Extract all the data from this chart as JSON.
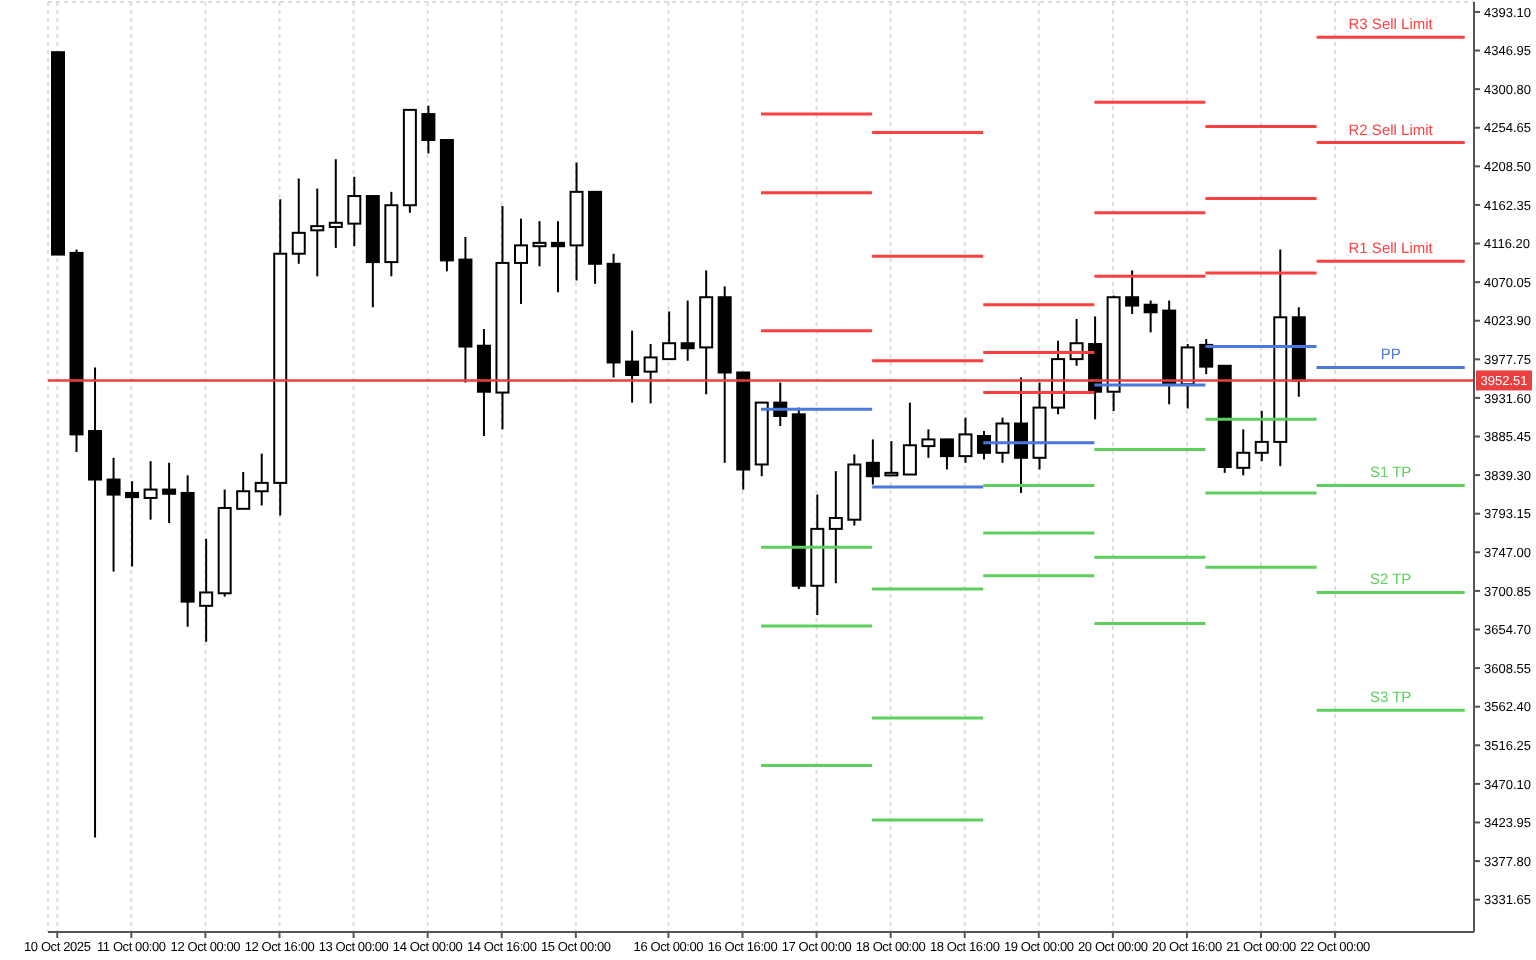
{
  "chart_data": {
    "type": "candlestick",
    "categories": [
      "10 Oct 2025",
      null,
      null,
      null,
      "11 Oct 00:00",
      null,
      null,
      null,
      "12 Oct 00:00",
      null,
      null,
      null,
      "12 Oct 16:00",
      null,
      null,
      null,
      "13 Oct 00:00",
      null,
      null,
      null,
      "14 Oct 00:00",
      null,
      null,
      null,
      "14 Oct 16:00",
      null,
      null,
      null,
      "15 Oct 00:00",
      null,
      null,
      null,
      null,
      "16 Oct 00:00",
      null,
      null,
      null,
      "16 Oct 16:00",
      null,
      null,
      null,
      "17 Oct 00:00",
      null,
      null,
      null,
      "18 Oct 00:00",
      null,
      null,
      null,
      "18 Oct 16:00",
      null,
      null,
      null,
      "19 Oct 00:00",
      null,
      null,
      null,
      "20 Oct 00:00",
      null,
      null,
      null,
      "20 Oct 16:00",
      null,
      null,
      null,
      "21 Oct 00:00",
      null,
      null,
      null,
      "22 Oct 00:00",
      null,
      null,
      null,
      null,
      null,
      null,
      null
    ],
    "ohlc": [
      [
        4345,
        4345,
        4103,
        4103
      ],
      [
        4105,
        4109,
        3867,
        3888
      ],
      [
        3892,
        3968,
        3406,
        3834
      ],
      [
        3834,
        3860,
        3724,
        3816
      ],
      [
        3818,
        3832,
        3730,
        3813
      ],
      [
        3812,
        3856,
        3786,
        3822
      ],
      [
        3822,
        3854,
        3782,
        3817
      ],
      [
        3818,
        3839,
        3658,
        3688
      ],
      [
        3683,
        3763,
        3640,
        3699
      ],
      [
        3698,
        3822,
        3694,
        3800
      ],
      [
        3799,
        3843,
        3799,
        3820
      ],
      [
        3820,
        3865,
        3803,
        3830
      ],
      [
        3830,
        4169,
        3791,
        4104
      ],
      [
        4104,
        4194,
        4092,
        4129
      ],
      [
        4132,
        4182,
        4077,
        4137
      ],
      [
        4136,
        4217,
        4111,
        4141
      ],
      [
        4140,
        4196,
        4113,
        4173
      ],
      [
        4173,
        4173,
        4040,
        4094
      ],
      [
        4094,
        4178,
        4077,
        4162
      ],
      [
        4162,
        4276,
        4153,
        4276
      ],
      [
        4271,
        4281,
        4224,
        4240
      ],
      [
        4240,
        4240,
        4083,
        4096
      ],
      [
        4097,
        4124,
        3950,
        3993
      ],
      [
        3994,
        4014,
        3886,
        3939
      ],
      [
        3938,
        4161,
        3894,
        4093
      ],
      [
        4093,
        4146,
        4044,
        4114
      ],
      [
        4113,
        4143,
        4089,
        4117
      ],
      [
        4117,
        4143,
        4058,
        4113
      ],
      [
        4114,
        4213,
        4072,
        4178
      ],
      [
        4178,
        4178,
        4068,
        4092
      ],
      [
        4092,
        4104,
        3956,
        3974
      ],
      [
        3975,
        4012,
        3926,
        3959
      ],
      [
        3963,
        3996,
        3925,
        3980
      ],
      [
        3978,
        4035,
        3978,
        3997
      ],
      [
        3997,
        4048,
        3976,
        3991
      ],
      [
        3992,
        4084,
        3936,
        4052
      ],
      [
        4052,
        4065,
        3854,
        3962
      ],
      [
        3962,
        3962,
        3822,
        3846
      ],
      [
        3852,
        3926,
        3838,
        3926
      ],
      [
        3926,
        3950,
        3898,
        3910
      ],
      [
        3912,
        3920,
        3703,
        3707
      ],
      [
        3707,
        3816,
        3672,
        3775
      ],
      [
        3775,
        3844,
        3710,
        3788
      ],
      [
        3786,
        3864,
        3779,
        3852
      ],
      [
        3854,
        3882,
        3828,
        3838
      ],
      [
        3839,
        3880,
        3839,
        3842
      ],
      [
        3840,
        3926,
        3840,
        3875
      ],
      [
        3874,
        3894,
        3860,
        3882
      ],
      [
        3882,
        3882,
        3846,
        3862
      ],
      [
        3862,
        3908,
        3854,
        3888
      ],
      [
        3886,
        3892,
        3858,
        3866
      ],
      [
        3866,
        3908,
        3854,
        3901
      ],
      [
        3901,
        3956,
        3818,
        3860
      ],
      [
        3860,
        3950,
        3846,
        3920
      ],
      [
        3920,
        4000,
        3912,
        3978
      ],
      [
        3978,
        4026,
        3970,
        3997
      ],
      [
        3996,
        4029,
        3906,
        3939
      ],
      [
        3939,
        4054,
        3916,
        4052
      ],
      [
        4052,
        4084,
        4032,
        4042
      ],
      [
        4043,
        4048,
        4010,
        4034
      ],
      [
        4036,
        4048,
        3924,
        3948
      ],
      [
        3948,
        3996,
        3919,
        3992
      ],
      [
        3995,
        4002,
        3960,
        3969
      ],
      [
        3970,
        3970,
        3842,
        3849
      ],
      [
        3848,
        3894,
        3839,
        3866
      ],
      [
        3866,
        3916,
        3856,
        3879
      ],
      [
        3879,
        4109,
        3850,
        4028
      ],
      [
        4028,
        4040,
        3933,
        3952.51
      ],
      null,
      null,
      null,
      null,
      null,
      null,
      null,
      null,
      null
    ],
    "series": [
      {
        "type": "line",
        "color": "#ff4040",
        "values": [
          null,
          null,
          null,
          null,
          null,
          null,
          null,
          null,
          null,
          null,
          null,
          null,
          null,
          null,
          null,
          null,
          null,
          null,
          null,
          null,
          null,
          null,
          null,
          null,
          null,
          null,
          null,
          null,
          null,
          null,
          null,
          null,
          null,
          null,
          null,
          null,
          null,
          null,
          4271,
          4271,
          4271,
          4271,
          4271,
          4271,
          4271,
          null,
          null,
          null,
          null,
          null,
          4043,
          4043,
          4043,
          4043,
          4043,
          4043,
          4043,
          null,
          null,
          null,
          null,
          null,
          4256,
          4256,
          4256,
          4256,
          4256,
          4256,
          4256,
          null,
          null,
          null,
          null,
          null,
          null,
          null,
          null
        ]
      },
      {
        "type": "line",
        "name": "R3 Sell Limit",
        "color": "#ff4040",
        "values": [
          null,
          null,
          null,
          null,
          null,
          null,
          null,
          null,
          null,
          null,
          null,
          null,
          null,
          null,
          null,
          null,
          null,
          null,
          null,
          null,
          null,
          null,
          null,
          null,
          null,
          null,
          null,
          null,
          null,
          null,
          null,
          null,
          null,
          null,
          null,
          null,
          null,
          null,
          null,
          null,
          null,
          null,
          null,
          null,
          4249,
          4249,
          4249,
          4249,
          4249,
          4249,
          4249,
          null,
          null,
          null,
          null,
          null,
          4285,
          4285,
          4285,
          4285,
          4285,
          4285,
          4285,
          null,
          null,
          null,
          null,
          null,
          4363,
          4363,
          4363,
          4363,
          4363,
          4363,
          4363,
          4363,
          4363
        ]
      },
      {
        "type": "line",
        "color": "#ff4040",
        "values": [
          null,
          null,
          null,
          null,
          null,
          null,
          null,
          null,
          null,
          null,
          null,
          null,
          null,
          null,
          null,
          null,
          null,
          null,
          null,
          null,
          null,
          null,
          null,
          null,
          null,
          null,
          null,
          null,
          null,
          null,
          null,
          null,
          null,
          null,
          null,
          null,
          null,
          null,
          4177,
          4177,
          4177,
          4177,
          4177,
          4177,
          4177,
          null,
          null,
          null,
          null,
          null,
          3986,
          3986,
          3986,
          3986,
          3986,
          3986,
          3986,
          null,
          null,
          null,
          null,
          null,
          4170,
          4170,
          4170,
          4170,
          4170,
          4170,
          4170,
          null,
          null,
          null,
          null,
          null,
          null,
          null,
          null
        ]
      },
      {
        "type": "line",
        "name": "R2 Sell Limit",
        "color": "#ff4040",
        "values": [
          null,
          null,
          null,
          null,
          null,
          null,
          null,
          null,
          null,
          null,
          null,
          null,
          null,
          null,
          null,
          null,
          null,
          null,
          null,
          null,
          null,
          null,
          null,
          null,
          null,
          null,
          null,
          null,
          null,
          null,
          null,
          null,
          null,
          null,
          null,
          null,
          null,
          null,
          null,
          null,
          null,
          null,
          null,
          null,
          4101,
          4101,
          4101,
          4101,
          4101,
          4101,
          4101,
          null,
          null,
          null,
          null,
          null,
          4153,
          4153,
          4153,
          4153,
          4153,
          4153,
          4153,
          null,
          null,
          null,
          null,
          null,
          4237,
          4237,
          4237,
          4237,
          4237,
          4237,
          4237,
          4237,
          4237
        ]
      },
      {
        "type": "line",
        "color": "#ff4040",
        "values": [
          null,
          null,
          null,
          null,
          null,
          null,
          null,
          null,
          null,
          null,
          null,
          null,
          null,
          null,
          null,
          null,
          null,
          null,
          null,
          null,
          null,
          null,
          null,
          null,
          null,
          null,
          null,
          null,
          null,
          null,
          null,
          null,
          null,
          null,
          null,
          null,
          null,
          null,
          4012,
          4012,
          4012,
          4012,
          4012,
          4012,
          4012,
          null,
          null,
          null,
          null,
          null,
          3938,
          3938,
          3938,
          3938,
          3938,
          3938,
          3938,
          null,
          null,
          null,
          null,
          null,
          4081,
          4081,
          4081,
          4081,
          4081,
          4081,
          4081,
          null,
          null,
          null,
          null,
          null,
          null,
          null,
          null
        ]
      },
      {
        "type": "line",
        "name": "R1 Sell Limit",
        "color": "#ff4040",
        "values": [
          null,
          null,
          null,
          null,
          null,
          null,
          null,
          null,
          null,
          null,
          null,
          null,
          null,
          null,
          null,
          null,
          null,
          null,
          null,
          null,
          null,
          null,
          null,
          null,
          null,
          null,
          null,
          null,
          null,
          null,
          null,
          null,
          null,
          null,
          null,
          null,
          null,
          null,
          null,
          null,
          null,
          null,
          null,
          null,
          3976,
          3976,
          3976,
          3976,
          3976,
          3976,
          3976,
          null,
          null,
          null,
          null,
          null,
          4077,
          4077,
          4077,
          4077,
          4077,
          4077,
          4077,
          null,
          null,
          null,
          null,
          null,
          4095,
          4095,
          4095,
          4095,
          4095,
          4095,
          4095,
          4095,
          4095
        ]
      },
      {
        "type": "line",
        "color": "#4a78dc",
        "values": [
          null,
          null,
          null,
          null,
          null,
          null,
          null,
          null,
          null,
          null,
          null,
          null,
          null,
          null,
          null,
          null,
          null,
          null,
          null,
          null,
          null,
          null,
          null,
          null,
          null,
          null,
          null,
          null,
          null,
          null,
          null,
          null,
          null,
          null,
          null,
          null,
          null,
          null,
          3918,
          3918,
          3918,
          3918,
          3918,
          3918,
          3918,
          null,
          null,
          null,
          null,
          null,
          3878,
          3878,
          3878,
          3878,
          3878,
          3878,
          3878,
          null,
          null,
          null,
          null,
          null,
          3993,
          3993,
          3993,
          3993,
          3993,
          3993,
          3993,
          null,
          null,
          null,
          null,
          null,
          null,
          null,
          null
        ]
      },
      {
        "type": "line",
        "name": "PP",
        "color": "#4a78dc",
        "values": [
          null,
          null,
          null,
          null,
          null,
          null,
          null,
          null,
          null,
          null,
          null,
          null,
          null,
          null,
          null,
          null,
          null,
          null,
          null,
          null,
          null,
          null,
          null,
          null,
          null,
          null,
          null,
          null,
          null,
          null,
          null,
          null,
          null,
          null,
          null,
          null,
          null,
          null,
          null,
          null,
          null,
          null,
          null,
          null,
          3825,
          3825,
          3825,
          3825,
          3825,
          3825,
          3825,
          null,
          null,
          null,
          null,
          null,
          3947,
          3947,
          3947,
          3947,
          3947,
          3947,
          3947,
          null,
          null,
          null,
          null,
          null,
          3968,
          3968,
          3968,
          3968,
          3968,
          3968,
          3968,
          3968,
          3968
        ]
      },
      {
        "type": "line",
        "color": "#5ccf5c",
        "values": [
          null,
          null,
          null,
          null,
          null,
          null,
          null,
          null,
          null,
          null,
          null,
          null,
          null,
          null,
          null,
          null,
          null,
          null,
          null,
          null,
          null,
          null,
          null,
          null,
          null,
          null,
          null,
          null,
          null,
          null,
          null,
          null,
          null,
          null,
          null,
          null,
          null,
          null,
          3753,
          3753,
          3753,
          3753,
          3753,
          3753,
          3753,
          null,
          null,
          null,
          null,
          null,
          3827,
          3827,
          3827,
          3827,
          3827,
          3827,
          3827,
          null,
          null,
          null,
          null,
          null,
          3906,
          3906,
          3906,
          3906,
          3906,
          3906,
          3906,
          null,
          null,
          null,
          null,
          null,
          null,
          null,
          null
        ]
      },
      {
        "type": "line",
        "name": "S1 TP",
        "color": "#5ccf5c",
        "values": [
          null,
          null,
          null,
          null,
          null,
          null,
          null,
          null,
          null,
          null,
          null,
          null,
          null,
          null,
          null,
          null,
          null,
          null,
          null,
          null,
          null,
          null,
          null,
          null,
          null,
          null,
          null,
          null,
          null,
          null,
          null,
          null,
          null,
          null,
          null,
          null,
          null,
          null,
          null,
          null,
          null,
          null,
          null,
          null,
          3703,
          3703,
          3703,
          3703,
          3703,
          3703,
          3703,
          null,
          null,
          null,
          null,
          null,
          3870,
          3870,
          3870,
          3870,
          3870,
          3870,
          3870,
          null,
          null,
          null,
          null,
          null,
          3827,
          3827,
          3827,
          3827,
          3827,
          3827,
          3827,
          3827,
          3827
        ]
      },
      {
        "type": "line",
        "color": "#5ccf5c",
        "values": [
          null,
          null,
          null,
          null,
          null,
          null,
          null,
          null,
          null,
          null,
          null,
          null,
          null,
          null,
          null,
          null,
          null,
          null,
          null,
          null,
          null,
          null,
          null,
          null,
          null,
          null,
          null,
          null,
          null,
          null,
          null,
          null,
          null,
          null,
          null,
          null,
          null,
          null,
          3659,
          3659,
          3659,
          3659,
          3659,
          3659,
          3659,
          null,
          null,
          null,
          null,
          null,
          3770,
          3770,
          3770,
          3770,
          3770,
          3770,
          3770,
          null,
          null,
          null,
          null,
          null,
          3818,
          3818,
          3818,
          3818,
          3818,
          3818,
          3818,
          null,
          null,
          null,
          null,
          null,
          null,
          null,
          null
        ]
      },
      {
        "type": "line",
        "name": "S2 TP",
        "color": "#5ccf5c",
        "values": [
          null,
          null,
          null,
          null,
          null,
          null,
          null,
          null,
          null,
          null,
          null,
          null,
          null,
          null,
          null,
          null,
          null,
          null,
          null,
          null,
          null,
          null,
          null,
          null,
          null,
          null,
          null,
          null,
          null,
          null,
          null,
          null,
          null,
          null,
          null,
          null,
          null,
          null,
          null,
          null,
          null,
          null,
          null,
          null,
          3549,
          3549,
          3549,
          3549,
          3549,
          3549,
          3549,
          null,
          null,
          null,
          null,
          null,
          3741,
          3741,
          3741,
          3741,
          3741,
          3741,
          3741,
          null,
          null,
          null,
          null,
          null,
          3699,
          3699,
          3699,
          3699,
          3699,
          3699,
          3699,
          3699,
          3699
        ]
      },
      {
        "type": "line",
        "color": "#5ccf5c",
        "values": [
          null,
          null,
          null,
          null,
          null,
          null,
          null,
          null,
          null,
          null,
          null,
          null,
          null,
          null,
          null,
          null,
          null,
          null,
          null,
          null,
          null,
          null,
          null,
          null,
          null,
          null,
          null,
          null,
          null,
          null,
          null,
          null,
          null,
          null,
          null,
          null,
          null,
          null,
          3492,
          3492,
          3492,
          3492,
          3492,
          3492,
          3492,
          null,
          null,
          null,
          null,
          null,
          3719,
          3719,
          3719,
          3719,
          3719,
          3719,
          3719,
          null,
          null,
          null,
          null,
          null,
          3729,
          3729,
          3729,
          3729,
          3729,
          3729,
          3729,
          null,
          null,
          null,
          null,
          null,
          null,
          null,
          null
        ]
      },
      {
        "type": "line",
        "name": "S3 TP",
        "color": "#5ccf5c",
        "values": [
          null,
          null,
          null,
          null,
          null,
          null,
          null,
          null,
          null,
          null,
          null,
          null,
          null,
          null,
          null,
          null,
          null,
          null,
          null,
          null,
          null,
          null,
          null,
          null,
          null,
          null,
          null,
          null,
          null,
          null,
          null,
          null,
          null,
          null,
          null,
          null,
          null,
          null,
          null,
          null,
          null,
          null,
          null,
          null,
          3427,
          3427,
          3427,
          3427,
          3427,
          3427,
          3427,
          null,
          null,
          null,
          null,
          null,
          3662,
          3662,
          3662,
          3662,
          3662,
          3662,
          3662,
          null,
          null,
          null,
          null,
          null,
          3558,
          3558,
          3558,
          3558,
          3558,
          3558,
          3558,
          3558,
          3558
        ]
      }
    ],
    "ylim": [
      3293,
      4405
    ],
    "yticks": [
      {
        "value": 4393.1,
        "label": "4393.10"
      },
      {
        "value": 4346.95,
        "label": "4346.95"
      },
      {
        "value": 4300.8,
        "label": "4300.80"
      },
      {
        "value": 4254.65,
        "label": "4254.65"
      },
      {
        "value": 4208.5,
        "label": "4208.50"
      },
      {
        "value": 4162.35,
        "label": "4162.35"
      },
      {
        "value": 4116.2,
        "label": "4116.20"
      },
      {
        "value": 4070.05,
        "label": "4070.05"
      },
      {
        "value": 4023.9,
        "label": "4023.90"
      },
      {
        "value": 3977.75,
        "label": "3977.75"
      },
      {
        "value": 3931.6,
        "label": "3931.60"
      },
      {
        "value": 3885.45,
        "label": "3885.45"
      },
      {
        "value": 3839.3,
        "label": "3839.30"
      },
      {
        "value": 3793.15,
        "label": "3793.15"
      },
      {
        "value": 3747,
        "label": "3747.00"
      },
      {
        "value": 3700.85,
        "label": "3700.85"
      },
      {
        "value": 3654.7,
        "label": "3654.70"
      },
      {
        "value": 3608.55,
        "label": "3608.55"
      },
      {
        "value": 3562.4,
        "label": "3562.40"
      },
      {
        "value": 3516.25,
        "label": "3516.25"
      },
      {
        "value": 3470.1,
        "label": "3470.10"
      },
      {
        "value": 3423.95,
        "label": "3423.95"
      },
      {
        "value": 3377.8,
        "label": "3377.80"
      },
      {
        "value": 3331.65,
        "label": "3331.65"
      }
    ],
    "ref_lines": [
      {
        "axis": "y",
        "value": 3952.51,
        "label": "3952.51",
        "color": "#e84040"
      }
    ],
    "grid": true,
    "legend": false
  }
}
